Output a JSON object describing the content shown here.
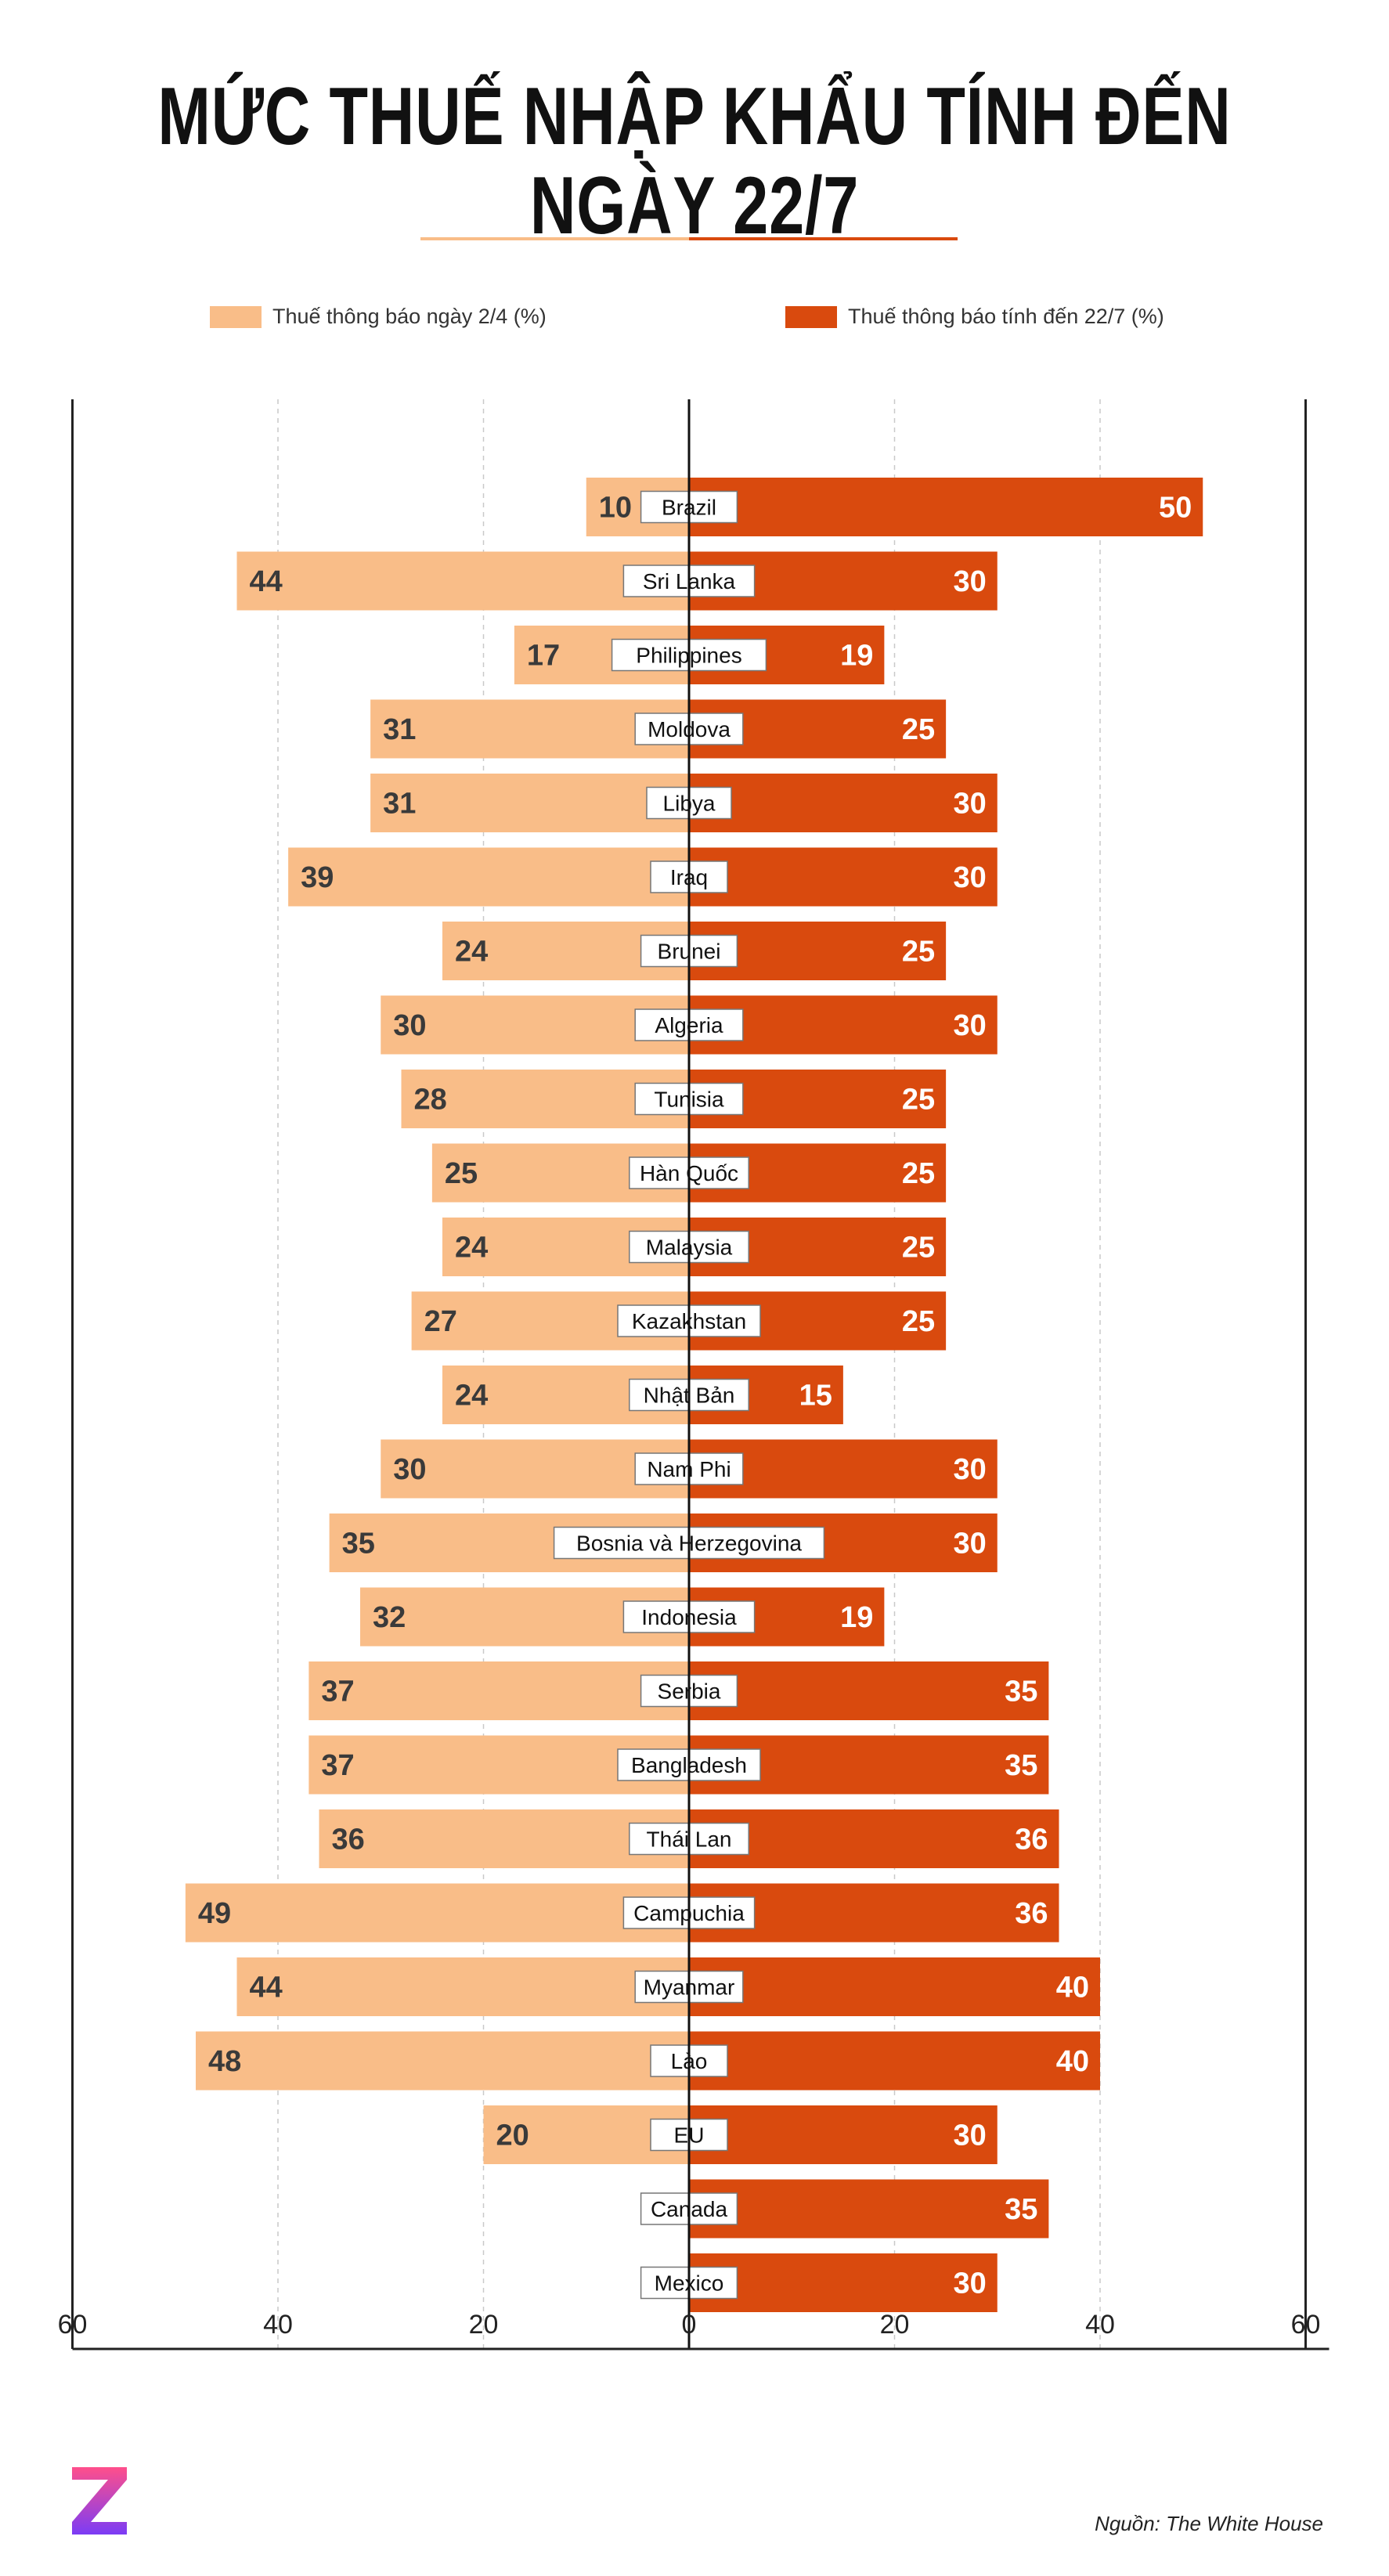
{
  "title": "MỨC THUẾ NHẬP KHẨU TÍNH ĐẾN NGÀY 22/7",
  "legend": {
    "before": "Thuế thông báo ngày 2/4 (%)",
    "after": "Thuế thông báo tính đến 22/7 (%)"
  },
  "colors": {
    "before": "#f9bd88",
    "after": "#d94a0e",
    "label_dark": "#3a3a3a",
    "label_light": "#ffffff",
    "logo_top": "#ff4f8b",
    "logo_bottom": "#7b3cf5"
  },
  "logo_icon": "z-logo-icon",
  "source": "Nguồn: The White House",
  "chart_data": {
    "type": "bar",
    "orientation": "horizontal-diverging",
    "categories": [
      "Brazil",
      "Sri Lanka",
      "Philippines",
      "Moldova",
      "Libya",
      "Iraq",
      "Brunei",
      "Algeria",
      "Tunisia",
      "Hàn Quốc",
      "Malaysia",
      "Kazakhstan",
      "Nhật Bản",
      "Nam Phi",
      "Bosnia và Herzegovina",
      "Indonesia",
      "Serbia",
      "Bangladesh",
      "Thái Lan",
      "Campuchia",
      "Myanmar",
      "Lào",
      "EU",
      "Canada",
      "Mexico"
    ],
    "series": [
      {
        "name": "Thuế thông báo ngày 2/4 (%)",
        "side": "left",
        "values": [
          10,
          44,
          17,
          31,
          31,
          39,
          24,
          30,
          28,
          25,
          24,
          27,
          24,
          30,
          35,
          32,
          37,
          37,
          36,
          49,
          44,
          48,
          20,
          null,
          null
        ]
      },
      {
        "name": "Thuế thông báo tính đến 22/7 (%)",
        "side": "right",
        "values": [
          50,
          30,
          19,
          25,
          30,
          30,
          25,
          30,
          25,
          25,
          25,
          25,
          15,
          30,
          30,
          19,
          35,
          35,
          36,
          36,
          40,
          40,
          30,
          35,
          30
        ]
      }
    ],
    "xlim": [
      -60,
      60
    ],
    "x_ticks": [
      -60,
      -40,
      -20,
      0,
      20,
      40,
      60
    ],
    "x_tick_labels": [
      "60",
      "40",
      "20",
      "0",
      "20",
      "40",
      "60"
    ],
    "grid": true
  }
}
